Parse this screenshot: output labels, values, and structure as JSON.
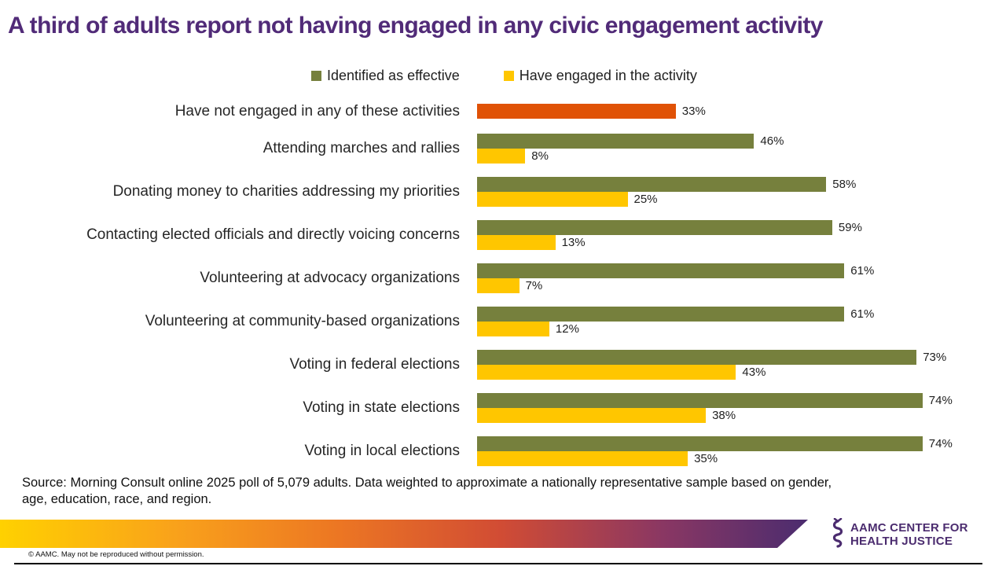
{
  "title": "A third of adults report not having engaged in any civic engagement activity",
  "colors": {
    "effective": "#76803D",
    "engaged": "#FFC600",
    "highlight": "#E05206",
    "title_text": "#512B78",
    "logo_purple": "#4B2C6F",
    "gradient_left": "#FFD100",
    "gradient_right": "#4B2C6F"
  },
  "legend": {
    "items": [
      {
        "label": "Identified as effective",
        "color_key": "effective"
      },
      {
        "label": "Have engaged in the activity",
        "color_key": "engaged"
      }
    ]
  },
  "chart_data": {
    "type": "bar",
    "orientation": "horizontal",
    "value_axis": {
      "min": 0,
      "max": 100,
      "unit": "%",
      "gridlines": false,
      "axis_labels_visible": false
    },
    "legend_position": "top",
    "series": [
      "Identified as effective",
      "Have engaged in the activity"
    ],
    "rows": [
      {
        "category": "Have not engaged in any of these activities",
        "bars": [
          {
            "series": null,
            "value": 33,
            "label": "33%",
            "color_key": "highlight",
            "highlight": true
          }
        ]
      },
      {
        "category": "Attending marches and rallies",
        "bars": [
          {
            "series": "Identified as effective",
            "value": 46,
            "label": "46%",
            "color_key": "effective"
          },
          {
            "series": "Have engaged in the activity",
            "value": 8,
            "label": "8%",
            "color_key": "engaged"
          }
        ]
      },
      {
        "category": "Donating money to charities addressing my priorities",
        "bars": [
          {
            "series": "Identified as effective",
            "value": 58,
            "label": "58%",
            "color_key": "effective"
          },
          {
            "series": "Have engaged in the activity",
            "value": 25,
            "label": "25%",
            "color_key": "engaged"
          }
        ]
      },
      {
        "category": "Contacting elected officials and directly voicing concerns",
        "bars": [
          {
            "series": "Identified as effective",
            "value": 59,
            "label": "59%",
            "color_key": "effective"
          },
          {
            "series": "Have engaged in the activity",
            "value": 13,
            "label": "13%",
            "color_key": "engaged"
          }
        ]
      },
      {
        "category": "Volunteering at advocacy organizations",
        "bars": [
          {
            "series": "Identified as effective",
            "value": 61,
            "label": "61%",
            "color_key": "effective"
          },
          {
            "series": "Have engaged in the activity",
            "value": 7,
            "label": "7%",
            "color_key": "engaged"
          }
        ]
      },
      {
        "category": "Volunteering at community-based organizations",
        "bars": [
          {
            "series": "Identified as effective",
            "value": 61,
            "label": "61%",
            "color_key": "effective"
          },
          {
            "series": "Have engaged in the activity",
            "value": 12,
            "label": "12%",
            "color_key": "engaged"
          }
        ]
      },
      {
        "category": "Voting in federal elections",
        "bars": [
          {
            "series": "Identified as effective",
            "value": 73,
            "label": "73%",
            "color_key": "effective"
          },
          {
            "series": "Have engaged in the activity",
            "value": 43,
            "label": "43%",
            "color_key": "engaged"
          }
        ]
      },
      {
        "category": "Voting in state elections",
        "bars": [
          {
            "series": "Identified as effective",
            "value": 74,
            "label": "74%",
            "color_key": "effective"
          },
          {
            "series": "Have engaged in the activity",
            "value": 38,
            "label": "38%",
            "color_key": "engaged"
          }
        ]
      },
      {
        "category": "Voting in local elections",
        "bars": [
          {
            "series": "Identified as effective",
            "value": 74,
            "label": "74%",
            "color_key": "effective"
          },
          {
            "series": "Have engaged in the activity",
            "value": 35,
            "label": "35%",
            "color_key": "engaged"
          }
        ]
      }
    ]
  },
  "source": {
    "text": "Source: Morning Consult online 2025 poll of 5,079 adults. Data weighted to approximate a nationally representative sample based on gender, age, education, race, and region."
  },
  "footer": {
    "logo_line1": "AAMC CENTER FOR",
    "logo_line2": "HEALTH JUSTICE",
    "copyright": "© AAMC. May not be reproduced without permission."
  }
}
